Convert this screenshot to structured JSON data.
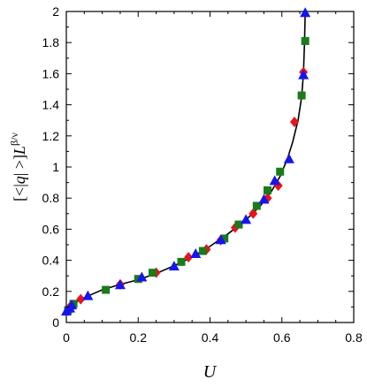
{
  "chart_data": {
    "type": "scatter",
    "xlabel": "U",
    "ylabel": {
      "open": "[<|",
      "var": "q",
      "close": "| >]",
      "L": "L",
      "sup": "β/ν"
    },
    "xlim": [
      0,
      0.8
    ],
    "ylim": [
      0,
      2
    ],
    "x_ticks": [
      {
        "v": 0,
        "label": "0"
      },
      {
        "v": 0.2,
        "label": "0.2"
      },
      {
        "v": 0.4,
        "label": "0.4"
      },
      {
        "v": 0.6,
        "label": "0.6"
      },
      {
        "v": 0.8,
        "label": "0.8"
      }
    ],
    "y_ticks": [
      {
        "v": 0,
        "label": "0"
      },
      {
        "v": 0.2,
        "label": "0.2"
      },
      {
        "v": 0.4,
        "label": "0.4"
      },
      {
        "v": 0.6,
        "label": "0.6"
      },
      {
        "v": 0.8,
        "label": "0.8"
      },
      {
        "v": 1,
        "label": "1"
      },
      {
        "v": 1.2,
        "label": "1.2"
      },
      {
        "v": 1.4,
        "label": "1.4"
      },
      {
        "v": 1.6,
        "label": "1.6"
      },
      {
        "v": 1.8,
        "label": "1.8"
      },
      {
        "v": 2,
        "label": "2"
      }
    ],
    "grid": false,
    "curve": {
      "color": "#000000",
      "points": [
        [
          0.0,
          0.06
        ],
        [
          0.005,
          0.085
        ],
        [
          0.01,
          0.1
        ],
        [
          0.02,
          0.12
        ],
        [
          0.04,
          0.15
        ],
        [
          0.07,
          0.18
        ],
        [
          0.1,
          0.21
        ],
        [
          0.15,
          0.245
        ],
        [
          0.2,
          0.275
        ],
        [
          0.25,
          0.315
        ],
        [
          0.3,
          0.365
        ],
        [
          0.35,
          0.42
        ],
        [
          0.4,
          0.49
        ],
        [
          0.45,
          0.57
        ],
        [
          0.5,
          0.66
        ],
        [
          0.54,
          0.75
        ],
        [
          0.57,
          0.84
        ],
        [
          0.595,
          0.94
        ],
        [
          0.615,
          1.05
        ],
        [
          0.63,
          1.16
        ],
        [
          0.645,
          1.3
        ],
        [
          0.655,
          1.45
        ],
        [
          0.66,
          1.6
        ],
        [
          0.663,
          1.8
        ],
        [
          0.665,
          2.0
        ]
      ]
    },
    "series": [
      {
        "marker": "diamond",
        "color": "#e8131b",
        "points": [
          [
            0.01,
            0.1
          ],
          [
            0.04,
            0.15
          ],
          [
            0.15,
            0.245
          ],
          [
            0.25,
            0.32
          ],
          [
            0.34,
            0.42
          ],
          [
            0.39,
            0.47
          ],
          [
            0.43,
            0.53
          ],
          [
            0.47,
            0.61
          ],
          [
            0.52,
            0.7
          ],
          [
            0.56,
            0.8
          ],
          [
            0.59,
            0.88
          ],
          [
            0.635,
            1.29
          ],
          [
            0.66,
            1.61
          ]
        ]
      },
      {
        "marker": "square",
        "color": "#1b7a1b",
        "points": [
          [
            0.005,
            0.08
          ],
          [
            0.02,
            0.12
          ],
          [
            0.11,
            0.21
          ],
          [
            0.2,
            0.28
          ],
          [
            0.24,
            0.32
          ],
          [
            0.32,
            0.39
          ],
          [
            0.38,
            0.46
          ],
          [
            0.44,
            0.54
          ],
          [
            0.48,
            0.63
          ],
          [
            0.53,
            0.75
          ],
          [
            0.56,
            0.85
          ],
          [
            0.595,
            0.97
          ],
          [
            0.655,
            1.46
          ],
          [
            0.665,
            1.81
          ]
        ]
      },
      {
        "marker": "triangle",
        "color": "#1515f0",
        "points": [
          [
            0.0,
            0.07
          ],
          [
            0.01,
            0.09
          ],
          [
            0.015,
            0.11
          ],
          [
            0.06,
            0.17
          ],
          [
            0.15,
            0.24
          ],
          [
            0.21,
            0.29
          ],
          [
            0.3,
            0.36
          ],
          [
            0.36,
            0.44
          ],
          [
            0.43,
            0.53
          ],
          [
            0.5,
            0.66
          ],
          [
            0.55,
            0.79
          ],
          [
            0.58,
            0.91
          ],
          [
            0.62,
            1.05
          ],
          [
            0.66,
            1.59
          ],
          [
            0.665,
            1.99
          ]
        ]
      }
    ]
  }
}
